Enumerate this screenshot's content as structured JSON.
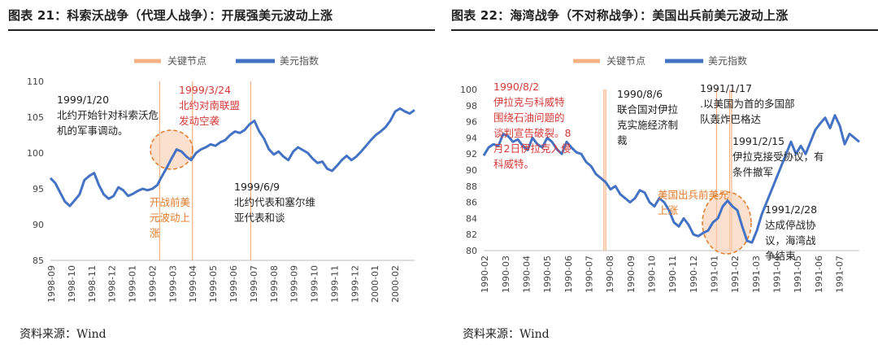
{
  "left": {
    "title": "图表 21：科索沃战争（代理人战争）：开展强美元波动上涨",
    "source": "资料来源：Wind",
    "legend": {
      "vline": "关键节点",
      "series": "美元指数"
    },
    "colors": {
      "series": "#4472c4",
      "vline": "#f4b183",
      "highlight_fill": "#f8cbad",
      "highlight_stroke": "#e07b2a"
    },
    "chart_data": {
      "type": "line",
      "series_name": "美元指数",
      "ylim": [
        85,
        110
      ],
      "yticks": [
        85,
        90,
        95,
        100,
        105,
        110
      ],
      "xticks": [
        "1998-09",
        "1998-10",
        "1998-11",
        "1998-12",
        "1999-01",
        "1999-02",
        "1999-03",
        "1999-04",
        "1999-05",
        "1999-06",
        "1999-07",
        "1999-08",
        "1999-09",
        "1999-10",
        "1999-11",
        "1999-12",
        "2000-01",
        "2000-02"
      ],
      "series": [
        96.5,
        95.8,
        94.5,
        93.2,
        92.6,
        93.4,
        94.2,
        96.2,
        96.8,
        97.2,
        95.5,
        94.2,
        93.6,
        94.0,
        95.2,
        94.8,
        94.0,
        94.3,
        94.7,
        95.0,
        94.8,
        95.0,
        95.5,
        96.8,
        98.0,
        99.3,
        100.5,
        100.2,
        99.5,
        99.0,
        100.0,
        100.5,
        100.8,
        101.2,
        101.0,
        101.5,
        101.8,
        102.5,
        103.0,
        102.8,
        103.2,
        104.0,
        104.5,
        103.0,
        102.0,
        100.5,
        99.8,
        100.2,
        99.5,
        99.0,
        100.2,
        100.8,
        100.4,
        100.0,
        99.2,
        98.6,
        98.8,
        97.8,
        97.5,
        98.2,
        99.0,
        99.6,
        99.0,
        99.5,
        100.2,
        101.0,
        101.8,
        102.5,
        103.0,
        103.6,
        104.5,
        105.8,
        106.2,
        105.8,
        105.5,
        106.0
      ],
      "vlines": [
        "1999-01-20",
        "1999-03-24",
        "1999-06-09"
      ],
      "vline_positions": [
        0.3,
        0.39,
        0.55
      ],
      "highlight": {
        "from": "1999-02",
        "to": "1999-03"
      }
    },
    "annotations": {
      "a1_l1": "1999/1/20",
      "a1_l2": "北约开始针对科索沃危",
      "a1_l3": "机的军事调动。",
      "a2_l1": "1999/3/24",
      "a2_l2": "北约对南联盟",
      "a2_l3": "发动空袭",
      "a3_l1": "1999/6/9",
      "a3_l2": "北约代表和塞尔维",
      "a3_l3": "亚代表和谈",
      "a4_l1": "开战前美",
      "a4_l2": "元波动上",
      "a4_l3": "涨"
    }
  },
  "right": {
    "title": "图表 22：海湾战争（不对称战争）：美国出兵前美元波动上涨",
    "source": "资料来源：Wind",
    "legend": {
      "vline": "关键节点",
      "series": "美元指数"
    },
    "colors": {
      "series": "#4472c4",
      "vline": "#f4b183",
      "highlight_fill": "#f8cbad",
      "highlight_stroke": "#e07b2a"
    },
    "chart_data": {
      "type": "line",
      "series_name": "美元指数",
      "ylim": [
        80,
        100
      ],
      "yticks": [
        80,
        82,
        84,
        86,
        88,
        90,
        92,
        94,
        96,
        98,
        100
      ],
      "xticks": [
        "1990-02",
        "1990-03",
        "1990-04",
        "1990-05",
        "1990-06",
        "1990-07",
        "1990-08",
        "1990-09",
        "1990-10",
        "1990-11",
        "1990-12",
        "1991-01",
        "1991-02",
        "1991-03",
        "1991-04",
        "1991-05",
        "1991-06",
        "1991-07"
      ],
      "series": [
        91.8,
        92.8,
        93.2,
        93.0,
        94.5,
        94.2,
        93.5,
        93.8,
        93.0,
        92.5,
        94.0,
        93.2,
        92.8,
        94.0,
        93.5,
        92.6,
        92.0,
        93.5,
        92.8,
        92.2,
        92.0,
        91.0,
        90.5,
        89.5,
        89.0,
        88.5,
        87.6,
        88.0,
        87.0,
        86.5,
        86.0,
        86.5,
        87.5,
        87.2,
        86.0,
        85.5,
        86.5,
        86.0,
        85.0,
        83.5,
        83.0,
        84.0,
        83.2,
        82.0,
        81.8,
        82.2,
        82.5,
        83.5,
        84.0,
        85.5,
        86.2,
        85.5,
        85.0,
        83.0,
        81.2,
        81.0,
        82.5,
        84.5,
        86.0,
        87.5,
        89.0,
        90.5,
        92.0,
        93.5,
        92.0,
        93.0,
        92.0,
        93.5,
        95.0,
        95.8,
        96.5,
        95.2,
        96.8,
        95.5,
        93.2,
        94.5,
        94.0,
        93.5
      ],
      "vlines": [
        "1990-08-02",
        "1990-08-06",
        "1991-01-17",
        "1991-02-15",
        "1991-02-28"
      ],
      "vline_positions": [
        0.32,
        0.325,
        0.62,
        0.655,
        0.66
      ],
      "highlight": {
        "from": "1991-01",
        "to": "1991-02"
      }
    },
    "annotations": {
      "b1_l1": "1990/8/2",
      "b1_l2": "伊拉克与科威特",
      "b1_l3": "围绕石油问题的",
      "b1_l4": "谈判宣告破裂。8",
      "b1_l5": "月2日伊拉克入侵",
      "b1_l6": "科威特。",
      "b2_l1": "1990/8/6",
      "b2_l2": "联合国对伊拉",
      "b2_l3": "克实施经济制",
      "b2_l4": "裁",
      "b3_l1": "1991/1/17",
      "b3_l2": ".以美国为首的多国部",
      "b3_l3": "队轰炸巴格达",
      "b4_l1": "1991/2/15",
      "b4_l2": "伊拉克接受协议，有",
      "b4_l3": "条件撤军",
      "b5_l1": "1991/2/28",
      "b5_l2": "达成停战协",
      "b5_l3": "议，海湾战",
      "b5_l4": "争结束",
      "b6_l1": "美国出兵前美元",
      "b6_l2": "上涨"
    }
  }
}
